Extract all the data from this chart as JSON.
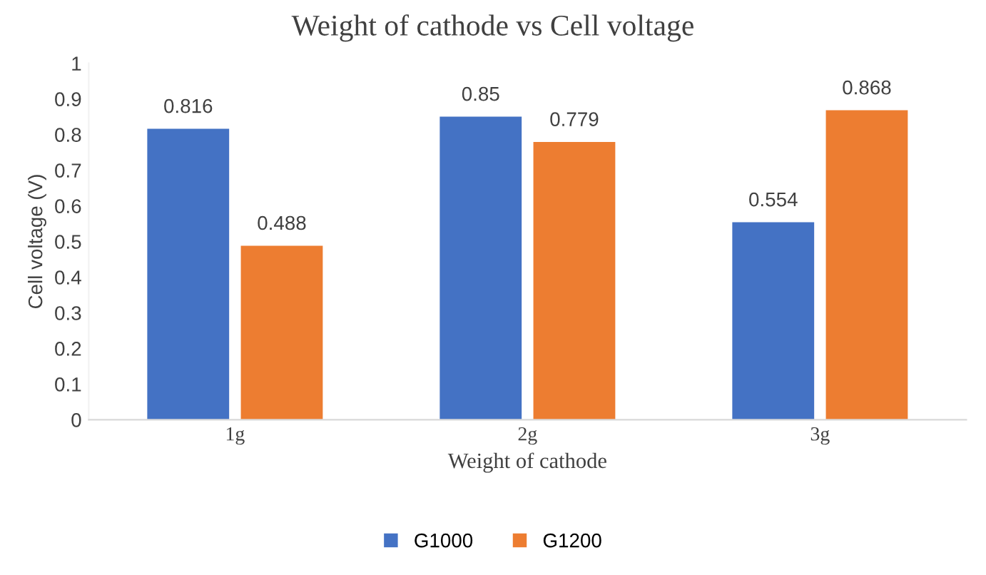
{
  "chart_data": {
    "type": "bar",
    "title": "Weight of cathode vs Cell voltage",
    "xlabel": "Weight of cathode",
    "ylabel": "Cell voltage (V)",
    "categories": [
      "1g",
      "2g",
      "3g"
    ],
    "series": [
      {
        "name": "G1000",
        "color": "#4472c4",
        "values": [
          0.816,
          0.85,
          0.554
        ]
      },
      {
        "name": "G1200",
        "color": "#ed7d31",
        "values": [
          0.488,
          0.779,
          0.868
        ]
      }
    ],
    "ylim": [
      0,
      1
    ],
    "yticks": [
      0,
      0.1,
      0.2,
      0.3,
      0.4,
      0.5,
      0.6,
      0.7,
      0.8,
      0.9,
      1
    ],
    "grid": false,
    "legend": "bottom",
    "data_labels": true
  }
}
